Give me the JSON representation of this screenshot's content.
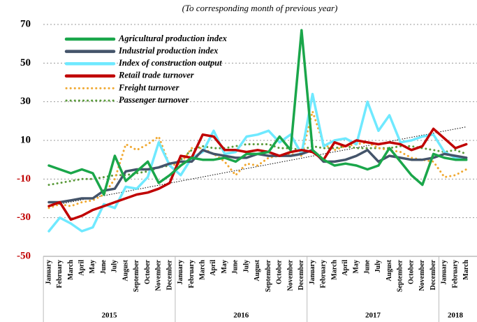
{
  "chart_data": {
    "type": "line",
    "subtitle": "(To corresponding month of previous year)",
    "categories": [
      "January",
      "February",
      "March",
      "April",
      "May",
      "June",
      "July",
      "August",
      "September",
      "October",
      "November",
      "December",
      "January",
      "February",
      "March",
      "April",
      "May",
      "June",
      "July",
      "August",
      "September",
      "October",
      "November",
      "December",
      "January",
      "February",
      "March",
      "April",
      "May",
      "June",
      "July",
      "August",
      "September",
      "October",
      "November",
      "December",
      "January",
      "February",
      "March"
    ],
    "year_groups": [
      {
        "label": "2015",
        "count": 12
      },
      {
        "label": "2016",
        "count": 12
      },
      {
        "label": "2017",
        "count": 12
      },
      {
        "label": "2018",
        "count": 3
      }
    ],
    "ylim": [
      -50,
      70
    ],
    "yticks": [
      -50,
      -30,
      -10,
      10,
      30,
      50,
      70
    ],
    "grid": true,
    "negative_tick_color": "#c00000",
    "trend": {
      "color": "#000000",
      "values": [
        -24,
        17
      ]
    },
    "series": [
      {
        "name": "Agricultural production index",
        "color": "#1aa64a",
        "style": "solid",
        "values": [
          -3,
          -5,
          -7,
          -5,
          -7,
          -18,
          2,
          -11,
          -6,
          -1,
          -12,
          -8,
          -3,
          1,
          0,
          0,
          1,
          -1,
          3,
          3,
          4,
          12,
          5,
          67,
          5,
          0,
          -3,
          -2,
          -3,
          -5,
          -3,
          6,
          -1,
          -8,
          -13,
          3,
          1,
          0,
          0
        ]
      },
      {
        "name": "Industrial production index",
        "color": "#44546a",
        "style": "solid",
        "values": [
          -22,
          -22,
          -21,
          -20,
          -20,
          -16,
          -15,
          -6,
          -5,
          -5,
          -4,
          -2,
          -1,
          -1,
          5,
          3,
          2,
          1,
          1,
          3,
          2,
          2,
          2,
          3,
          5,
          -1,
          -1,
          0,
          2,
          5,
          -1,
          2,
          1,
          0,
          0,
          1,
          3,
          2,
          1
        ]
      },
      {
        "name": "Index of construction output",
        "color": "#6fe9ff",
        "style": "solid",
        "values": [
          -37,
          -30,
          -33,
          -37,
          -35,
          -23,
          -25,
          -14,
          -15,
          -9,
          9,
          -3,
          -8,
          1,
          4,
          15,
          3,
          4,
          12,
          13,
          15,
          9,
          13,
          3,
          34,
          7,
          10,
          11,
          8,
          30,
          15,
          23,
          9,
          10,
          12,
          13,
          4,
          1,
          0
        ]
      },
      {
        "name": "Retail trade turnover",
        "color": "#c00000",
        "style": "solid",
        "values": [
          -24,
          -22,
          -31,
          -29,
          -26,
          -24,
          -22,
          -20,
          -18,
          -17,
          -15,
          -12,
          2,
          1,
          13,
          12,
          5,
          5,
          4,
          5,
          4,
          2,
          4,
          5,
          4,
          0,
          9,
          7,
          10,
          9,
          8,
          9,
          8,
          5,
          7,
          16,
          11,
          6,
          8
        ]
      },
      {
        "name": "Freight turnover",
        "color": "#f0a830",
        "style": "dotted",
        "values": [
          -25,
          -23,
          -24,
          -22,
          -21,
          -18,
          -10,
          8,
          5,
          8,
          12,
          -3,
          -2,
          6,
          6,
          3,
          -1,
          -8,
          -2,
          -3,
          1,
          2,
          3,
          2,
          25,
          8,
          5,
          7,
          8,
          9,
          6,
          5,
          4,
          1,
          0,
          -1,
          -9,
          -8,
          -5
        ]
      },
      {
        "name": "Passenger turnover",
        "color": "#5a9a3a",
        "style": "dotted",
        "values": [
          -13,
          -12,
          -11,
          -10,
          -10,
          -9,
          -8,
          -8,
          -7,
          -6,
          -4,
          -3,
          0,
          5,
          7,
          6,
          6,
          7,
          8,
          8,
          8,
          6,
          6,
          5,
          7,
          6,
          6,
          7,
          6,
          6,
          6,
          6,
          7,
          7,
          6,
          5,
          4,
          5,
          3
        ]
      }
    ]
  }
}
